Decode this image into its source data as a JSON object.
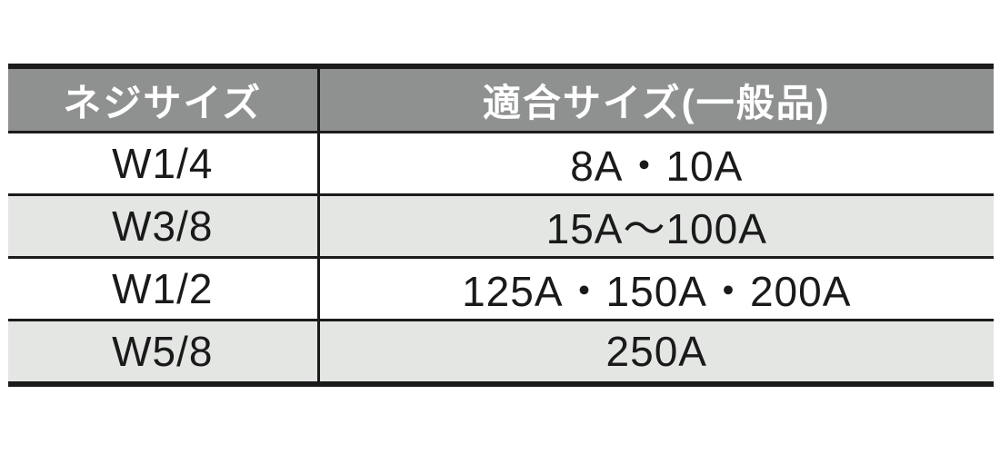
{
  "page": {
    "background": "#ffffff"
  },
  "table": {
    "columns": [
      {
        "label": "ネジサイズ"
      },
      {
        "label": "適合サイズ(一般品)"
      }
    ],
    "rows": [
      {
        "screw_size": "W1/4",
        "compatible_size": "8A・10A"
      },
      {
        "screw_size": "W3/8",
        "compatible_size": "15A～100A"
      },
      {
        "screw_size": "W1/2",
        "compatible_size": "125A・150A・200A"
      },
      {
        "screw_size": "W5/8",
        "compatible_size": "250A"
      }
    ],
    "colors": {
      "header_background": "#8f9190",
      "header_text": "#ffffff",
      "row_stripe": "#e4e6e4",
      "border": "#1b1b1b",
      "body_text": "#1a1a1a"
    }
  }
}
